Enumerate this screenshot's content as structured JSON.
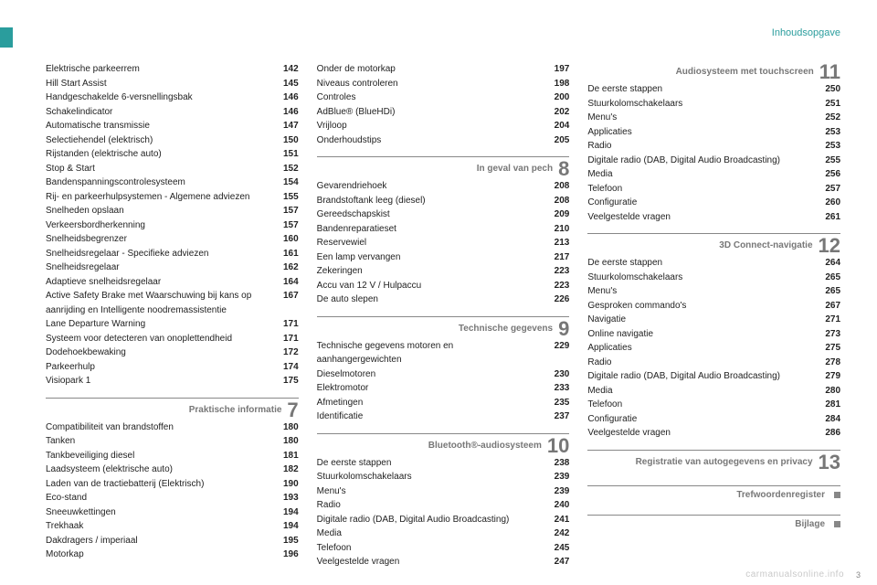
{
  "header": {
    "title": "Inhoudsopgave"
  },
  "watermark": "carmanualsonline.info",
  "pagenum": "3",
  "col1": {
    "top_entries": [
      {
        "label": "Elektrische parkeerrem",
        "pg": "142"
      },
      {
        "label": "Hill Start Assist",
        "pg": "145"
      },
      {
        "label": "Handgeschakelde 6-versnellingsbak",
        "pg": "146"
      },
      {
        "label": "Schakelindicator",
        "pg": "146"
      },
      {
        "label": "Automatische transmissie",
        "pg": "147"
      },
      {
        "label": "Selectiehendel (elektrisch)",
        "pg": "150"
      },
      {
        "label": "Rijstanden (elektrische auto)",
        "pg": "151"
      },
      {
        "label": "Stop & Start",
        "pg": "152"
      },
      {
        "label": "Bandenspanningscontrolesysteem",
        "pg": "154"
      },
      {
        "label": "Rij- en parkeerhulpsystemen - Algemene adviezen",
        "pg": "155"
      },
      {
        "label": "Snelheden opslaan",
        "pg": "157"
      },
      {
        "label": "Verkeersbordherkenning",
        "pg": "157"
      },
      {
        "label": "Snelheidsbegrenzer",
        "pg": "160"
      },
      {
        "label": "Snelheidsregelaar - Specifieke adviezen",
        "pg": "161"
      },
      {
        "label": "Snelheidsregelaar",
        "pg": "162"
      },
      {
        "label": "Adaptieve snelheidsregelaar",
        "pg": "164"
      },
      {
        "label": "Active Safety Brake met Waarschuwing bij kans op aanrijding en Intelligente noodremassistentie",
        "pg": "167"
      },
      {
        "label": "Lane Departure Warning",
        "pg": "171"
      },
      {
        "label": "Systeem voor detecteren van onoplettendheid",
        "pg": "171"
      },
      {
        "label": "Dodehoekbewaking",
        "pg": "172"
      },
      {
        "label": "Parkeerhulp",
        "pg": "174"
      },
      {
        "label": "Visiopark 1",
        "pg": "175"
      }
    ],
    "section7": {
      "title": "Praktische informatie",
      "num": "7"
    },
    "sec7_entries": [
      {
        "label": "Compatibiliteit van brandstoffen",
        "pg": "180"
      },
      {
        "label": "Tanken",
        "pg": "180"
      },
      {
        "label": "Tankbeveiliging diesel",
        "pg": "181"
      },
      {
        "label": "Laadsysteem (elektrische auto)",
        "pg": "182"
      },
      {
        "label": "Laden van de tractiebatterij (Elektrisch)",
        "pg": "190"
      },
      {
        "label": "Eco-stand",
        "pg": "193"
      },
      {
        "label": "Sneeuwkettingen",
        "pg": "194"
      },
      {
        "label": "Trekhaak",
        "pg": "194"
      },
      {
        "label": "Dakdragers / imperiaal",
        "pg": "195"
      },
      {
        "label": "Motorkap",
        "pg": "196"
      }
    ]
  },
  "col2": {
    "top_entries": [
      {
        "label": "Onder de motorkap",
        "pg": "197"
      },
      {
        "label": "Niveaus controleren",
        "pg": "198"
      },
      {
        "label": "Controles",
        "pg": "200"
      },
      {
        "label": "AdBlue® (BlueHDi)",
        "pg": "202"
      },
      {
        "label": "Vrijloop",
        "pg": "204"
      },
      {
        "label": "Onderhoudstips",
        "pg": "205"
      }
    ],
    "section8": {
      "title": "In geval van pech",
      "num": "8"
    },
    "sec8_entries": [
      {
        "label": "Gevarendriehoek",
        "pg": "208"
      },
      {
        "label": "Brandstoftank leeg (diesel)",
        "pg": "208"
      },
      {
        "label": "Gereedschapskist",
        "pg": "209"
      },
      {
        "label": "Bandenreparatieset",
        "pg": "210"
      },
      {
        "label": "Reservewiel",
        "pg": "213"
      },
      {
        "label": "Een lamp vervangen",
        "pg": "217"
      },
      {
        "label": "Zekeringen",
        "pg": "223"
      },
      {
        "label": "Accu van 12 V / Hulpaccu",
        "pg": "223"
      },
      {
        "label": "De auto slepen",
        "pg": "226"
      }
    ],
    "section9": {
      "title": "Technische gegevens",
      "num": "9"
    },
    "sec9_entries": [
      {
        "label": "Technische gegevens motoren en aanhangergewichten",
        "pg": "229"
      },
      {
        "label": "Dieselmotoren",
        "pg": "230"
      },
      {
        "label": "Elektromotor",
        "pg": "233"
      },
      {
        "label": "Afmetingen",
        "pg": "235"
      },
      {
        "label": "Identificatie",
        "pg": "237"
      }
    ],
    "section10": {
      "title": "Bluetooth®-audiosysteem",
      "num": "10"
    },
    "sec10_entries": [
      {
        "label": "De eerste stappen",
        "pg": "238"
      },
      {
        "label": "Stuurkolomschakelaars",
        "pg": "239"
      },
      {
        "label": "Menu's",
        "pg": "239"
      },
      {
        "label": "Radio",
        "pg": "240"
      },
      {
        "label": "Digitale radio (DAB, Digital Audio Broadcasting)",
        "pg": "241"
      },
      {
        "label": "Media",
        "pg": "242"
      },
      {
        "label": "Telefoon",
        "pg": "245"
      },
      {
        "label": "Veelgestelde vragen",
        "pg": "247"
      }
    ]
  },
  "col3": {
    "section11": {
      "title": "Audiosysteem met touchscreen",
      "num": "11"
    },
    "sec11_entries": [
      {
        "label": "De eerste stappen",
        "pg": "250"
      },
      {
        "label": "Stuurkolomschakelaars",
        "pg": "251"
      },
      {
        "label": "Menu's",
        "pg": "252"
      },
      {
        "label": "Applicaties",
        "pg": "253"
      },
      {
        "label": "Radio",
        "pg": "253"
      },
      {
        "label": "Digitale radio (DAB, Digital Audio Broadcasting)",
        "pg": "255"
      },
      {
        "label": "Media",
        "pg": "256"
      },
      {
        "label": "Telefoon",
        "pg": "257"
      },
      {
        "label": "Configuratie",
        "pg": "260"
      },
      {
        "label": "Veelgestelde vragen",
        "pg": "261"
      }
    ],
    "section12": {
      "title": "3D Connect-navigatie",
      "num": "12"
    },
    "sec12_entries": [
      {
        "label": "De eerste stappen",
        "pg": "264"
      },
      {
        "label": "Stuurkolomschakelaars",
        "pg": "265"
      },
      {
        "label": "Menu's",
        "pg": "265"
      },
      {
        "label": "Gesproken commando's",
        "pg": "267"
      },
      {
        "label": "Navigatie",
        "pg": "271"
      },
      {
        "label": "Online navigatie",
        "pg": "273"
      },
      {
        "label": "Applicaties",
        "pg": "275"
      },
      {
        "label": "Radio",
        "pg": "278"
      },
      {
        "label": "Digitale radio (DAB, Digital Audio Broadcasting)",
        "pg": "279"
      },
      {
        "label": "Media",
        "pg": "280"
      },
      {
        "label": "Telefoon",
        "pg": "281"
      },
      {
        "label": "Configuratie",
        "pg": "284"
      },
      {
        "label": "Veelgestelde vragen",
        "pg": "286"
      }
    ],
    "section13": {
      "title": "Registratie van autogegevens en privacy",
      "num": "13"
    },
    "sectionIndex": {
      "title": "Trefwoordenregister"
    },
    "sectionBijlage": {
      "title": "Bijlage"
    }
  }
}
